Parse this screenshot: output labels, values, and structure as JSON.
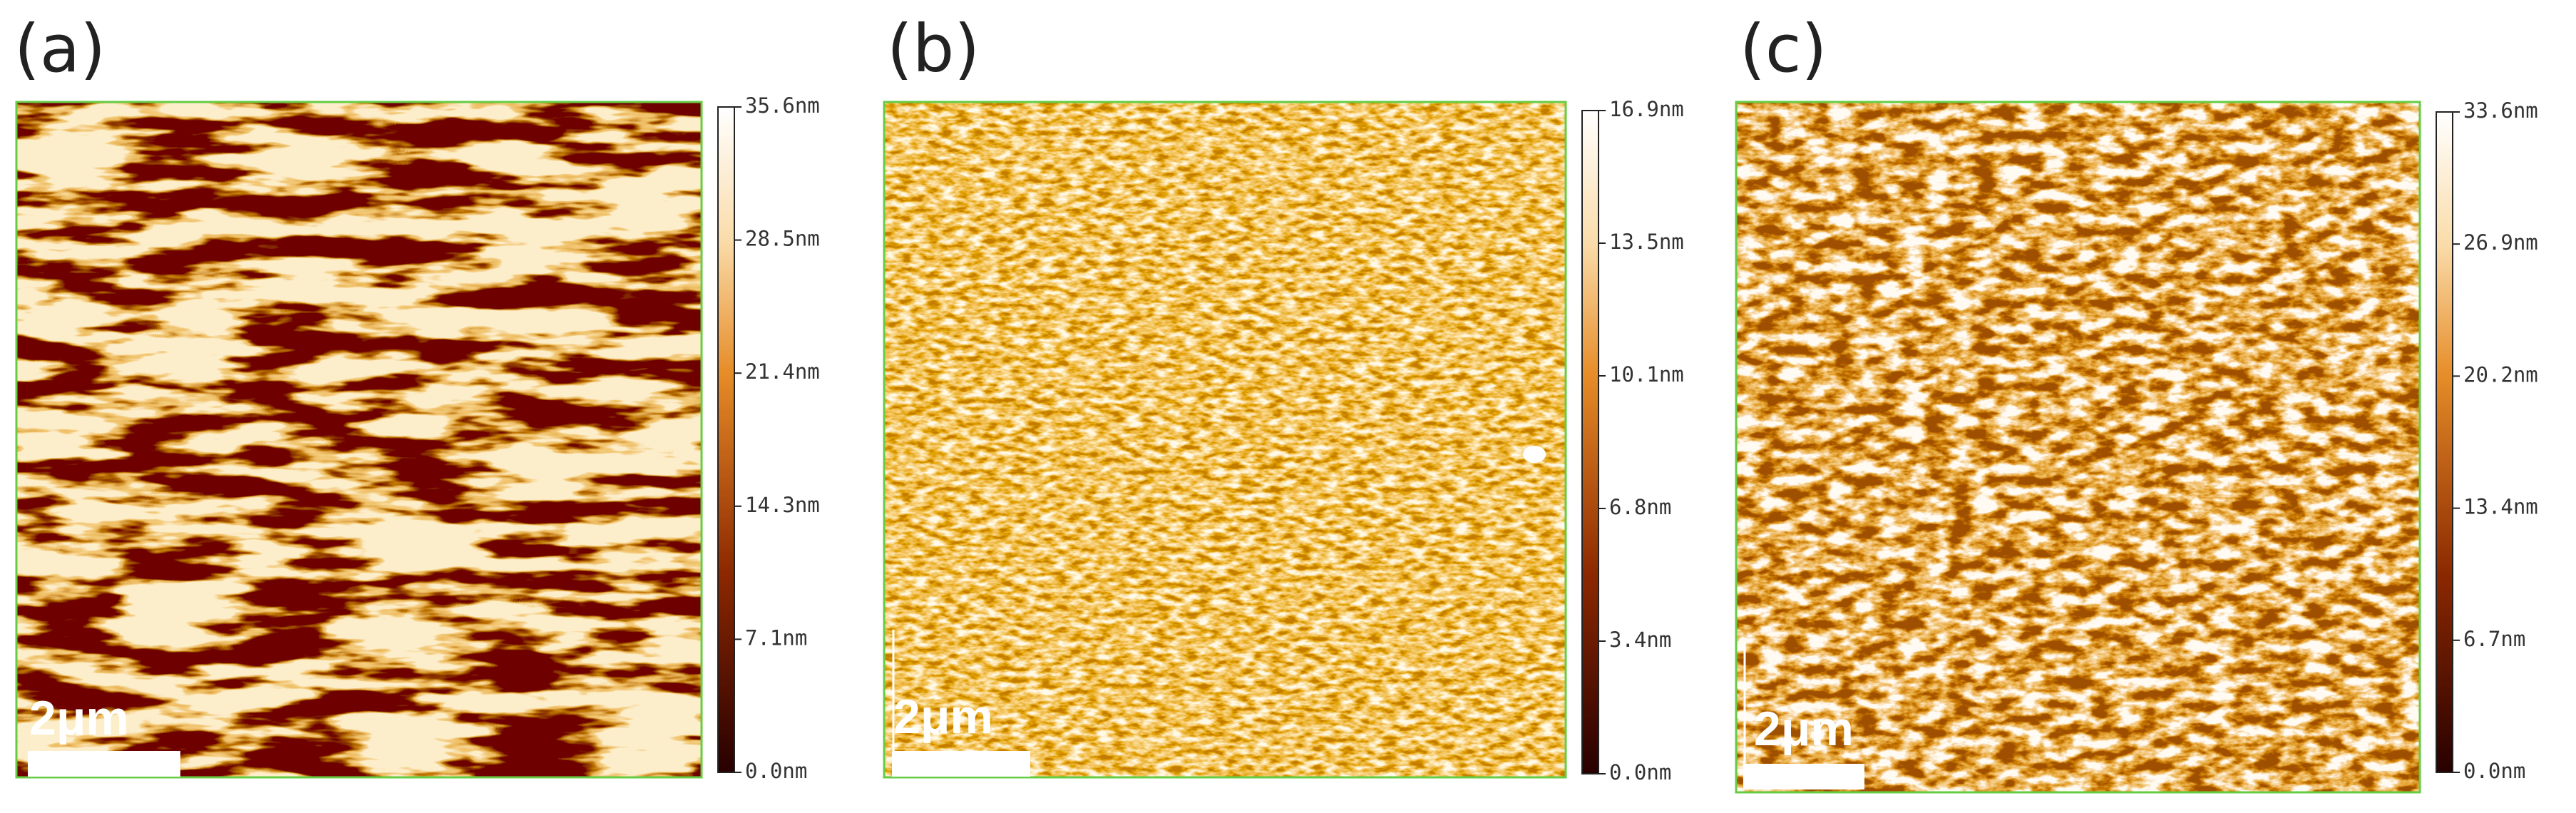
{
  "panels": [
    {
      "label": "(a)",
      "scale_bar": "2μm",
      "colorbar_ticks": [
        "35.6nm",
        "28.5nm",
        "21.4nm",
        "14.3nm",
        "7.1nm",
        "0.0nm"
      ]
    },
    {
      "label": "(b)",
      "scale_bar": "2μm",
      "colorbar_ticks": [
        "16.9nm",
        "13.5nm",
        "10.1nm",
        "6.8nm",
        "3.4nm",
        "0.0nm"
      ]
    },
    {
      "label": "(c)",
      "scale_bar": "2μm",
      "colorbar_ticks": [
        "33.6nm",
        "26.9nm",
        "20.2nm",
        "13.4nm",
        "6.7nm",
        "0.0nm"
      ]
    }
  ]
}
